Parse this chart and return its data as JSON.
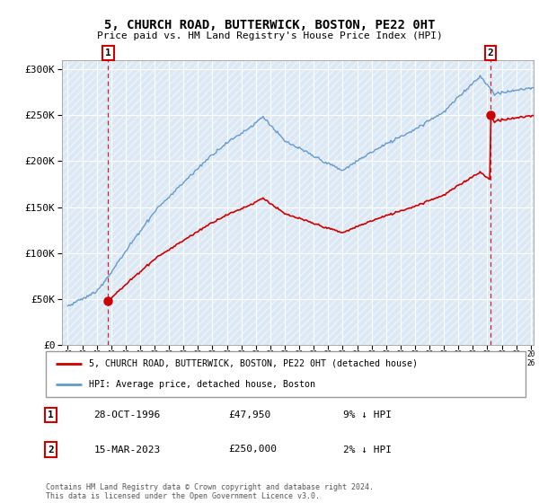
{
  "title": "5, CHURCH ROAD, BUTTERWICK, BOSTON, PE22 0HT",
  "subtitle": "Price paid vs. HM Land Registry's House Price Index (HPI)",
  "sale1_date": "28-OCT-1996",
  "sale1_price": 47950,
  "sale1_label": "1",
  "sale1_hpi_pct": "9% ↓ HPI",
  "sale2_date": "15-MAR-2023",
  "sale2_price": 250000,
  "sale2_label": "2",
  "sale2_hpi_pct": "2% ↓ HPI",
  "legend_property": "5, CHURCH ROAD, BUTTERWICK, BOSTON, PE22 0HT (detached house)",
  "legend_hpi": "HPI: Average price, detached house, Boston",
  "footnote": "Contains HM Land Registry data © Crown copyright and database right 2024.\nThis data is licensed under the Open Government Licence v3.0.",
  "property_color": "#cc0000",
  "hpi_color": "#6699cc",
  "bg_color": "#dce9f5",
  "ylim": [
    0,
    310000
  ],
  "yticks": [
    0,
    50000,
    100000,
    150000,
    200000,
    250000,
    300000
  ],
  "ytick_labels": [
    "£0",
    "£50K",
    "£100K",
    "£150K",
    "£200K",
    "£250K",
    "£300K"
  ],
  "xlim_left": 1993.6,
  "xlim_right": 2026.2
}
